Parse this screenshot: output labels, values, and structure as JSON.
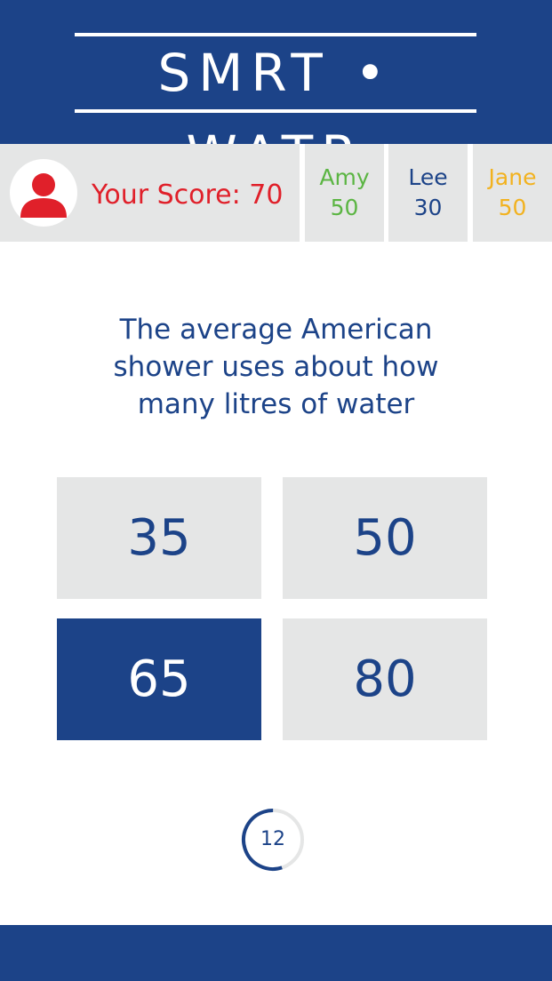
{
  "app": {
    "logo_text": "SMRT • WATR"
  },
  "score_bar": {
    "your_score_label": "Your Score: 70",
    "players": [
      {
        "name": "Amy",
        "score": "50",
        "color": "#5bb543"
      },
      {
        "name": "Lee",
        "score": "30",
        "color": "#1c4388"
      },
      {
        "name": "Jane",
        "score": "50",
        "color": "#f2b21f"
      }
    ]
  },
  "question": {
    "text": "The average American shower uses about how many litres of water"
  },
  "answers": [
    {
      "label": "35",
      "selected": false
    },
    {
      "label": "50",
      "selected": false
    },
    {
      "label": "65",
      "selected": true
    },
    {
      "label": "80",
      "selected": false
    }
  ],
  "timer": {
    "value": "12",
    "remaining_fraction": 0.55
  },
  "colors": {
    "brand_blue": "#1c4388",
    "panel_gray": "#e5e6e6",
    "score_red": "#e0202a"
  }
}
